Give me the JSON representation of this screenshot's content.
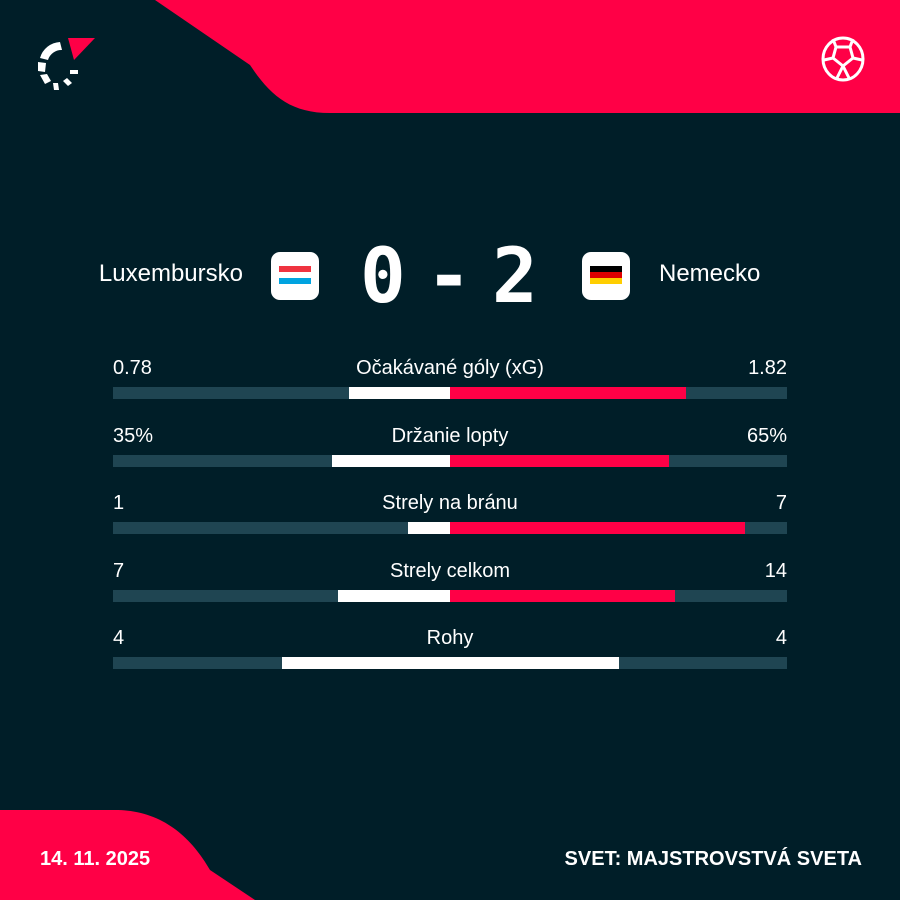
{
  "colors": {
    "background": "#001e28",
    "accent": "#ff0046",
    "track": "#1f4552",
    "home_fill": "#ffffff",
    "away_fill": "#ff0046"
  },
  "header": {
    "logo_icon": "flashscore-logo",
    "sport_icon": "football-icon"
  },
  "match": {
    "home": {
      "name": "Luxembursko",
      "flag": "luxembourg",
      "flag_colors": [
        "#ef3340",
        "#ffffff",
        "#00a3e0"
      ]
    },
    "away": {
      "name": "Nemecko",
      "flag": "germany",
      "flag_colors": [
        "#000000",
        "#dd0000",
        "#ffce00"
      ]
    },
    "score_home": "0",
    "score_sep": "-",
    "score_away": "2"
  },
  "stats": [
    {
      "label": "Očakávané góly (xG)",
      "home": "0.78",
      "away": "1.82",
      "home_value": 0.78,
      "away_value": 1.82
    },
    {
      "label": "Držanie lopty",
      "home": "35%",
      "away": "65%",
      "home_value": 35,
      "away_value": 65
    },
    {
      "label": "Strely na bránu",
      "home": "1",
      "away": "7",
      "home_value": 1,
      "away_value": 7
    },
    {
      "label": "Strely celkom",
      "home": "7",
      "away": "14",
      "home_value": 7,
      "away_value": 14
    },
    {
      "label": "Rohy",
      "home": "4",
      "away": "4",
      "home_value": 4,
      "away_value": 4
    }
  ],
  "footer": {
    "date": "14. 11. 2025",
    "competition": "SVET: MAJSTROVSTVÁ SVETA"
  }
}
